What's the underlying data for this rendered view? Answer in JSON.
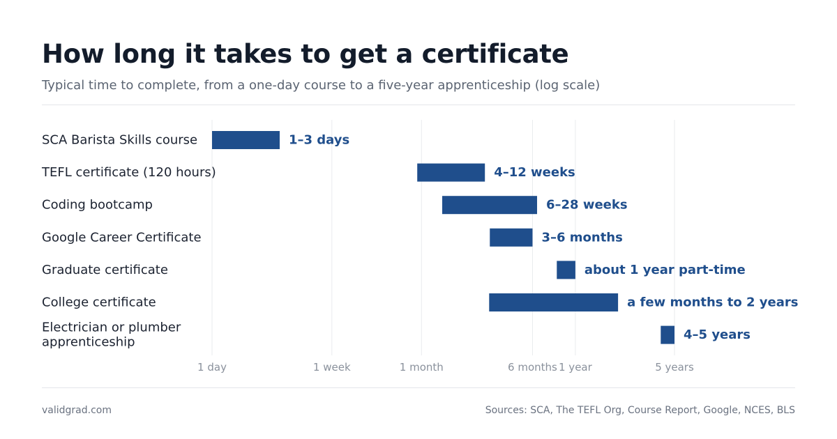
{
  "header": {
    "title": "How long it takes to get a certificate",
    "subtitle": "Typical time to complete, from a one-day course to a five-year apprenticeship (log scale)"
  },
  "footer": {
    "site": "validgrad.com",
    "sources": "Sources: SCA, The TEFL Org, Course Report, Google, NCES, BLS"
  },
  "colors": {
    "bar": "#1f4e8c",
    "value_label": "#1f4e8c",
    "category_label": "#1b2230",
    "tick_label": "#8a919c",
    "grid": "#e9ebee"
  },
  "chart_data": {
    "type": "bar",
    "orientation": "horizontal-range",
    "x_unit": "days",
    "x_scale": "log",
    "title": "How long it takes to get a certificate",
    "subtitle": "Typical time to complete, from a one-day course to a five-year apprenticeship (log scale)",
    "xlim": [
      1,
      1825
    ],
    "grid": true,
    "ticks": [
      {
        "label": "1 day",
        "value": 1
      },
      {
        "label": "1 week",
        "value": 7
      },
      {
        "label": "1 month",
        "value": 30
      },
      {
        "label": "6 months",
        "value": 182
      },
      {
        "label": "1 year",
        "value": 365
      },
      {
        "label": "5 years",
        "value": 1825
      }
    ],
    "categories": [
      "SCA Barista Skills course",
      "TEFL certificate (120 hours)",
      "Coding bootcamp",
      "Google Career Certificate",
      "Graduate certificate",
      "College certificate",
      "Electrician or plumber apprenticeship"
    ],
    "bars": [
      {
        "category": "SCA Barista Skills course",
        "start": 1,
        "end": 3,
        "label": "1–3 days"
      },
      {
        "category": "TEFL certificate (120 hours)",
        "start": 28,
        "end": 84,
        "label": "4–12 weeks"
      },
      {
        "category": "Coding bootcamp",
        "start": 42,
        "end": 196,
        "label": "6–28 weeks"
      },
      {
        "category": "Google Career Certificate",
        "start": 91,
        "end": 182,
        "label": "3–6 months"
      },
      {
        "category": "Graduate certificate",
        "start": 270,
        "end": 365,
        "label": "about 1 year part-time"
      },
      {
        "category": "College certificate",
        "start": 90,
        "end": 730,
        "label": "a few months to 2 years"
      },
      {
        "category": "Electrician or plumber apprenticeship",
        "start": 1460,
        "end": 1825,
        "label": "4–5 years"
      }
    ]
  }
}
